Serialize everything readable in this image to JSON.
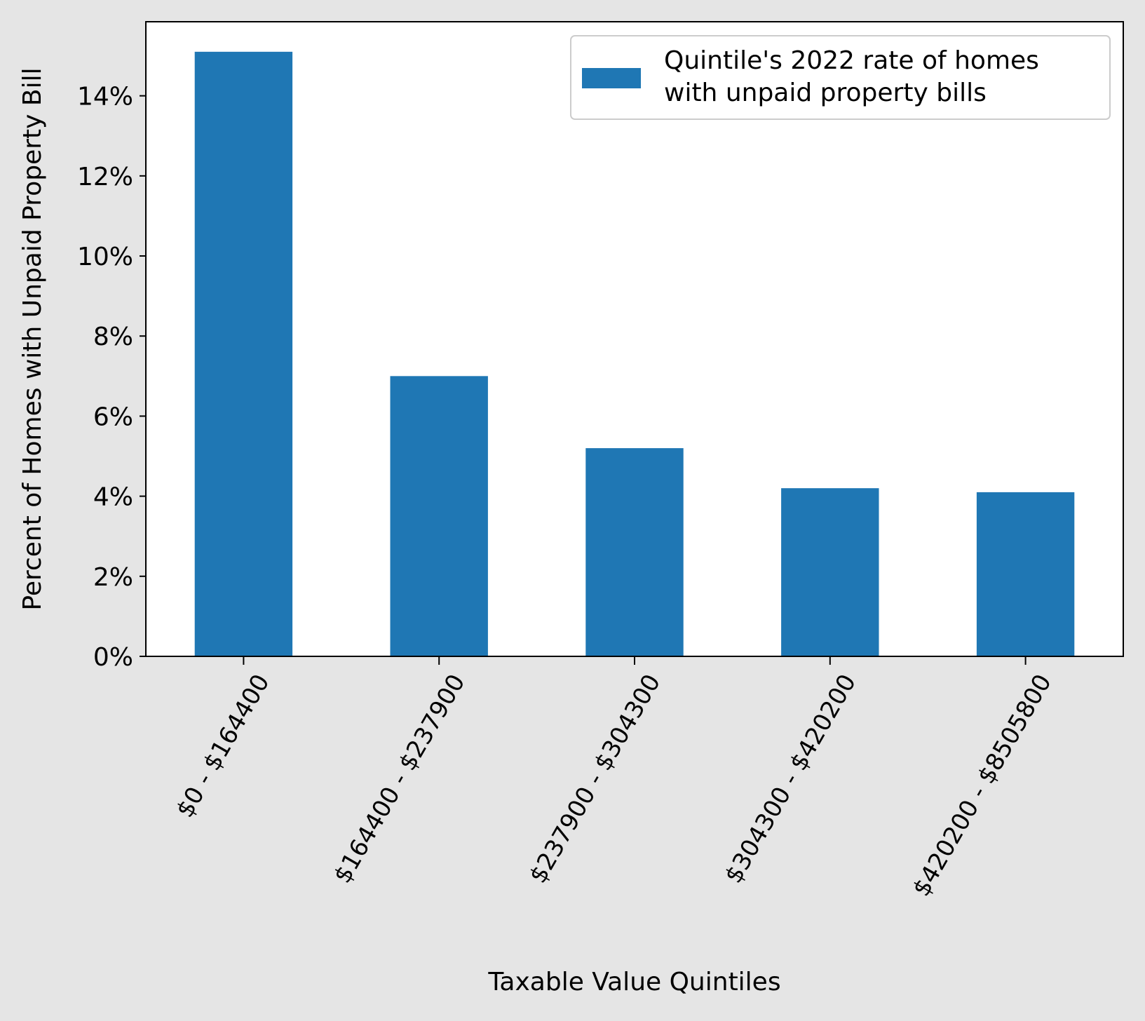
{
  "colors": {
    "figure_background": "#e5e5e5",
    "plot_background": "#ffffff",
    "bar": "#1f77b4",
    "axis": "#000000",
    "legend_border": "#cccccc"
  },
  "chart_data": {
    "type": "bar",
    "title": "",
    "xlabel": "Taxable Value Quintiles",
    "ylabel": "Percent of Homes with Unpaid Property Bill",
    "categories": [
      "$0 - $164400",
      "$164400 - $237900",
      "$237900 - $304300",
      "$304300 - $420200",
      "$420200 - $8505800"
    ],
    "series": [
      {
        "name": "Quintile's 2022 rate of homes with unpaid property bills",
        "values": [
          15.1,
          7.0,
          5.2,
          4.2,
          4.1
        ]
      }
    ],
    "ylim": [
      0,
      15.85
    ],
    "yticks": [
      0,
      2,
      4,
      6,
      8,
      10,
      12,
      14
    ],
    "ytick_labels": [
      "0%",
      "2%",
      "4%",
      "6%",
      "8%",
      "10%",
      "12%",
      "14%"
    ],
    "xtick_rotation": 60,
    "grid": false,
    "legend": {
      "placement": "top-right",
      "lines": [
        "Quintile's 2022 rate of homes",
        "with unpaid property bills"
      ]
    }
  }
}
